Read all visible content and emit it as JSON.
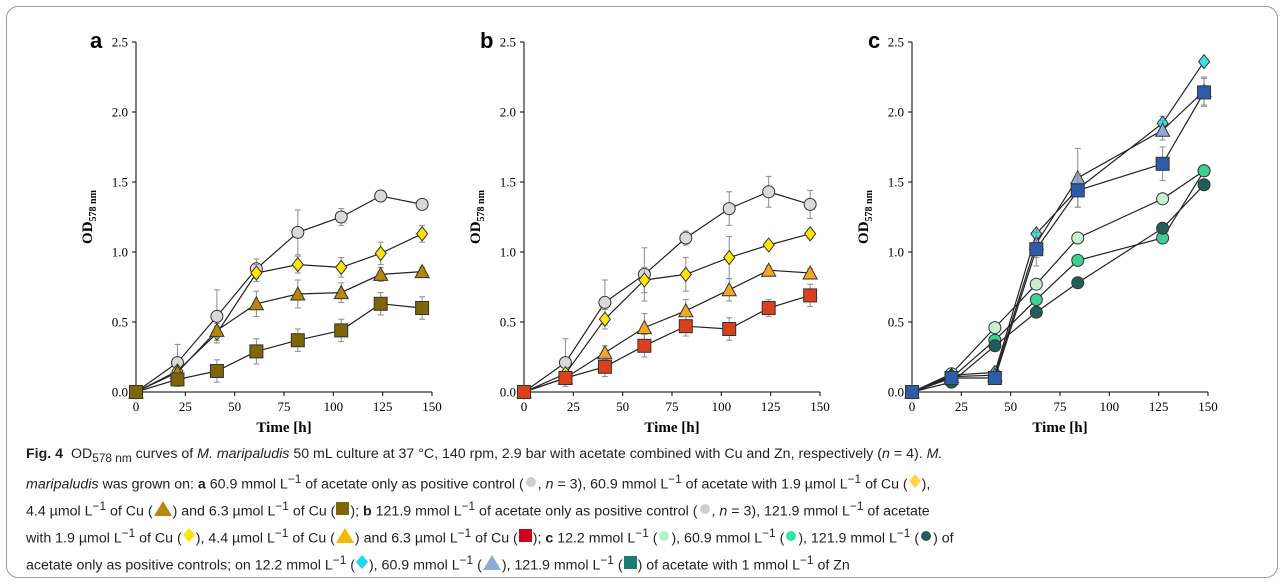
{
  "chart_data": [
    {
      "panel": "a",
      "type": "line",
      "xlabel": "Time [h]",
      "ylabel": "OD578 nm",
      "xlim": [
        0,
        150
      ],
      "ylim": [
        0,
        2.5
      ],
      "xticks": [
        "0",
        "25",
        "50",
        "75",
        "100",
        "125",
        "150"
      ],
      "yticks": [
        "0.0",
        "0.5",
        "1.0",
        "1.5",
        "2.0",
        "2.5"
      ],
      "series": [
        {
          "marker": "circle",
          "fill": "#d9d9d9",
          "x": [
            0,
            21,
            41,
            61,
            82,
            104,
            124,
            145
          ],
          "y": [
            0,
            0.21,
            0.54,
            0.88,
            1.14,
            1.25,
            1.4,
            1.34
          ],
          "err": [
            0,
            0.13,
            0.19,
            0.07,
            0.16,
            0.06,
            0,
            0
          ]
        },
        {
          "marker": "diamond",
          "fill": "#ffe600",
          "x": [
            0,
            21,
            41,
            61,
            82,
            104,
            124,
            145
          ],
          "y": [
            0,
            0.15,
            0.42,
            0.85,
            0.91,
            0.89,
            0.99,
            1.13
          ],
          "err": [
            0,
            0.03,
            0.05,
            0.06,
            0.06,
            0.07,
            0.08,
            0.06
          ]
        },
        {
          "marker": "triangle",
          "fill": "#b8860b",
          "x": [
            0,
            21,
            41,
            61,
            82,
            104,
            124,
            145
          ],
          "y": [
            0,
            0.14,
            0.44,
            0.63,
            0.7,
            0.71,
            0.84,
            0.86
          ],
          "err": [
            0,
            0.03,
            0.05,
            0.09,
            0.1,
            0.07,
            0.05,
            0.03
          ]
        },
        {
          "marker": "square",
          "fill": "#7d6608",
          "x": [
            0,
            21,
            41,
            61,
            82,
            104,
            124,
            145
          ],
          "y": [
            0,
            0.09,
            0.15,
            0.29,
            0.37,
            0.44,
            0.63,
            0.6
          ],
          "err": [
            0,
            0.05,
            0.08,
            0.09,
            0.08,
            0.08,
            0.08,
            0.08
          ]
        }
      ]
    },
    {
      "panel": "b",
      "type": "line",
      "xlabel": "Time [h]",
      "ylabel": "OD578 nm",
      "xlim": [
        0,
        150
      ],
      "ylim": [
        0,
        2.5
      ],
      "xticks": [
        "0",
        "25",
        "50",
        "75",
        "100",
        "125",
        "150"
      ],
      "yticks": [
        "0.0",
        "0.5",
        "1.0",
        "1.5",
        "2.0",
        "2.5"
      ],
      "series": [
        {
          "marker": "circle",
          "fill": "#d9d9d9",
          "x": [
            0,
            21,
            41,
            61,
            82,
            104,
            124,
            145
          ],
          "y": [
            0,
            0.21,
            0.64,
            0.84,
            1.1,
            1.31,
            1.43,
            1.34
          ],
          "err": [
            0,
            0.17,
            0.16,
            0.19,
            0.05,
            0.12,
            0.11,
            0.1
          ]
        },
        {
          "marker": "diamond",
          "fill": "#ffe600",
          "x": [
            0,
            21,
            41,
            61,
            82,
            104,
            124,
            145
          ],
          "y": [
            0,
            0.13,
            0.52,
            0.8,
            0.84,
            0.96,
            1.05,
            1.13
          ],
          "err": [
            0,
            0.04,
            0.07,
            0.09,
            0.12,
            0.15,
            0.03,
            0.03
          ]
        },
        {
          "marker": "triangle",
          "fill": "#f5a623",
          "x": [
            0,
            21,
            41,
            61,
            82,
            104,
            124,
            145
          ],
          "y": [
            0,
            0.1,
            0.28,
            0.46,
            0.58,
            0.73,
            0.87,
            0.85
          ],
          "err": [
            0,
            0.03,
            0.05,
            0.1,
            0.08,
            0.08,
            0.03,
            0.03
          ]
        },
        {
          "marker": "square",
          "fill": "#d9411e",
          "x": [
            0,
            21,
            41,
            61,
            82,
            104,
            124,
            145
          ],
          "y": [
            0,
            0.1,
            0.18,
            0.33,
            0.47,
            0.45,
            0.6,
            0.69
          ],
          "err": [
            0,
            0.03,
            0.07,
            0.08,
            0.07,
            0.08,
            0.06,
            0.08
          ]
        }
      ]
    },
    {
      "panel": "c",
      "type": "line",
      "xlabel": "Time [h]",
      "ylabel": "OD578 nm",
      "xlim": [
        0,
        150
      ],
      "ylim": [
        0,
        2.5
      ],
      "xticks": [
        "0",
        "25",
        "50",
        "75",
        "100",
        "125",
        "150"
      ],
      "yticks": [
        "0.0",
        "0.5",
        "1.0",
        "1.5",
        "2.0",
        "2.5"
      ],
      "series": [
        {
          "marker": "circle",
          "fill": "#c7f0d0",
          "x": [
            0,
            20,
            42,
            63,
            84,
            127,
            148
          ],
          "y": [
            0,
            0.13,
            0.46,
            0.77,
            1.1,
            1.38,
            1.58
          ],
          "err": [
            0,
            0,
            0,
            0,
            0,
            0,
            0
          ]
        },
        {
          "marker": "circle",
          "fill": "#3ecf92",
          "x": [
            0,
            20,
            42,
            63,
            84,
            127,
            148
          ],
          "y": [
            0,
            0.1,
            0.37,
            0.66,
            0.94,
            1.1,
            1.58
          ],
          "err": [
            0,
            0,
            0,
            0,
            0,
            0,
            0
          ]
        },
        {
          "marker": "circle",
          "fill": "#1f5f57",
          "x": [
            0,
            20,
            42,
            63,
            84,
            127,
            148
          ],
          "y": [
            0,
            0.07,
            0.33,
            0.57,
            0.78,
            1.17,
            1.48
          ],
          "err": [
            0,
            0,
            0,
            0,
            0,
            0,
            0
          ]
        },
        {
          "marker": "diamond",
          "fill": "#3ee0e8",
          "x": [
            0,
            20,
            42,
            63,
            84,
            127,
            148
          ],
          "y": [
            0,
            0.12,
            0.14,
            1.13,
            1.45,
            1.92,
            2.36
          ],
          "err": [
            0,
            0,
            0,
            0,
            0,
            0.05,
            0
          ]
        },
        {
          "marker": "triangle",
          "fill": "#8fa9d8",
          "x": [
            0,
            20,
            42,
            63,
            84,
            127,
            148
          ],
          "y": [
            0,
            0.11,
            0.12,
            1.06,
            1.53,
            1.87,
            2.15
          ],
          "err": [
            0,
            0,
            0,
            0.1,
            0.21,
            0.07,
            0.1
          ]
        },
        {
          "marker": "square",
          "fill": "#2f5ca8",
          "x": [
            0,
            20,
            42,
            63,
            84,
            127,
            148
          ],
          "y": [
            0,
            0.1,
            0.1,
            1.02,
            1.44,
            1.63,
            2.14
          ],
          "err": [
            0,
            0,
            0.03,
            0.12,
            0.12,
            0.12,
            0.1
          ]
        }
      ]
    }
  ],
  "caption": {
    "fig": "Fig. 4",
    "l1_a": "OD",
    "l1_sub": "578 nm",
    "l1_b": " curves of ",
    "l1_org": "M. maripaludis",
    "l1_c": " 50 mL culture at 37 °C, 140 rpm, 2.9 bar with acetate combined with Cu and Zn, respectively (",
    "l1_n": "n",
    "l1_d": " = 4). ",
    "l1_org2": "M.",
    "l2_org": "maripaludis",
    "l2_a": " was grown on: ",
    "l2_a_label": "a",
    "l2_b": " 60.9 mmol L",
    "l2_c": " of acetate only as positive control (",
    "l2_d": ", ",
    "l2_n": "n",
    "l2_e": " = 3), 60.9 mmol L",
    "l2_f": " of acetate with 1.9 µmol L",
    "l2_g": " of Cu (",
    "l2_h": "),",
    "l3_a": "4.4 µmol L",
    "l3_b": " of Cu (",
    "l3_c": ") and 6.3 µmol L",
    "l3_d": " of Cu (",
    "l3_e": "); ",
    "l3_b_label": "b",
    "l3_f": " 121.9 mmol L",
    "l3_g": " of acetate only as positive control (",
    "l3_h": ", ",
    "l3_n": "n",
    "l3_i": " = 3), 121.9 mmol L",
    "l3_j": " of acetate",
    "l4_a": "with 1.9 µmol L",
    "l4_b": " of Cu (",
    "l4_c": "), 4.4 µmol L",
    "l4_d": " of Cu (",
    "l4_e": ") and 6.3 µmol L",
    "l4_f": " of Cu (",
    "l4_g": "); ",
    "l4_c_label": "c",
    "l4_h": " 12.2 mmol L",
    "l4_i": " (",
    "l4_j": "), 60.9 mmol L",
    "l4_k": " (",
    "l4_l": "), 121.9 mmol L",
    "l4_m": " (",
    "l4_n": ") of",
    "l5_a": "acetate only as positive controls; on 12.2 mmol L",
    "l5_b": " (",
    "l5_c": "), 60.9 mmol L",
    "l5_d": " (",
    "l5_e": "), 121.9 mmol L",
    "l5_f": " (",
    "l5_g": ") of acetate with 1 mmol L",
    "l5_h": " of Zn",
    "sup": "−1"
  }
}
